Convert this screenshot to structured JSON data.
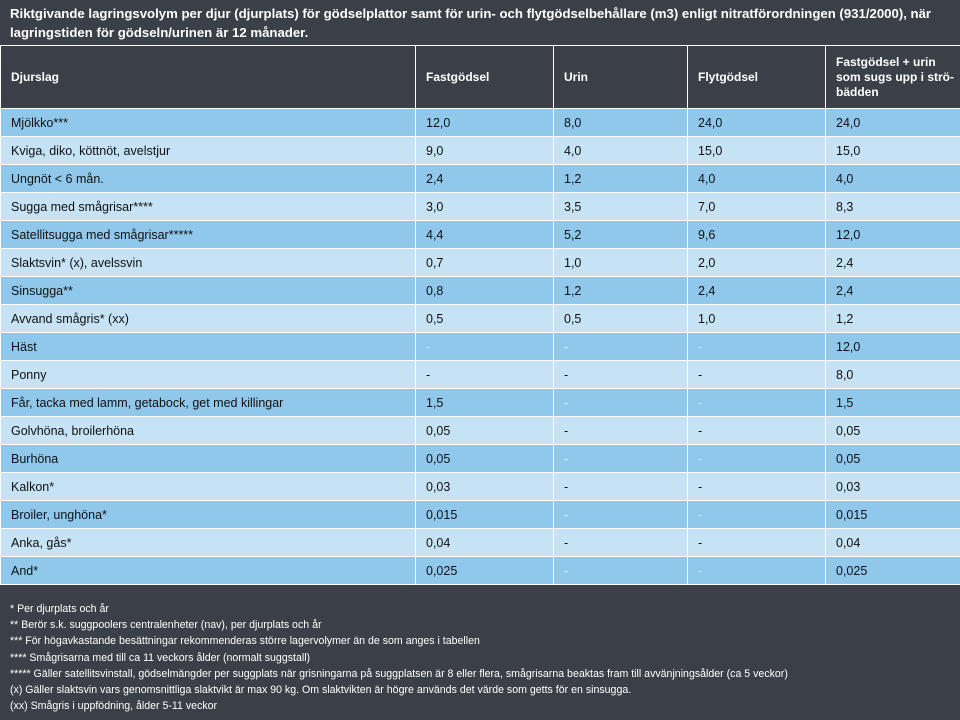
{
  "title": "Riktgivande lagringsvolym per djur (djurplats) för gödselplattor samt för urin- och flytgödselbehållare (m3) enligt nitratförordningen (931/2000),  när lagringstiden för gödseln/urinen är 12 månader.",
  "table": {
    "headers": [
      "Djurslag",
      "Fastgödsel",
      "Urin",
      "Flytgödsel",
      "Fastgödsel + urin som sugs upp i strö­bädden"
    ],
    "rows": [
      [
        "Mjölkko***",
        "12,0",
        "8,0",
        "24,0",
        "24,0"
      ],
      [
        "Kviga, diko, köttnöt, avelstjur",
        "9,0",
        "4,0",
        "15,0",
        "15,0"
      ],
      [
        "Ungnöt < 6 mån.",
        "2,4",
        "1,2",
        "4,0",
        "4,0"
      ],
      [
        "Sugga med smågrisar****",
        "3,0",
        "3,5",
        "7,0",
        "8,3"
      ],
      [
        "Satellitsugga med smågrisar*****",
        "4,4",
        "5,2",
        "9,6",
        "12,0"
      ],
      [
        "Slaktsvin* (x), avelssvin",
        "0,7",
        "1,0",
        "2,0",
        "2,4"
      ],
      [
        "Sinsugga**",
        "0,8",
        "1,2",
        "2,4",
        "2,4"
      ],
      [
        "Avvand smågris* (xx)",
        "0,5",
        "0,5",
        "1,0",
        "1,2"
      ],
      [
        "Häst",
        "-",
        "-",
        "-",
        "12,0"
      ],
      [
        "Ponny",
        "-",
        "-",
        "-",
        "8,0"
      ],
      [
        "Får, tacka med lamm, getabock, get med killingar",
        "1,5",
        "-",
        "-",
        "1,5"
      ],
      [
        "Golvhöna, broilerhöna",
        "0,05",
        "-",
        "-",
        "0,05"
      ],
      [
        "Burhöna",
        "0,05",
        "-",
        "-",
        "0,05"
      ],
      [
        "Kalkon*",
        "0,03",
        "-",
        "-",
        "0,03"
      ],
      [
        "Broiler, unghöna*",
        "0,015",
        "-",
        "-",
        "0,015"
      ],
      [
        "Anka, gås*",
        "0,04",
        "-",
        "-",
        "0,04"
      ],
      [
        "And*",
        "0,025",
        "-",
        "-",
        "0,025"
      ]
    ]
  },
  "notes": [
    "* Per djurplats och år",
    "** Berör s.k. suggpoolers centralenheter (nav), per djurplats och år",
    "*** För högavkastande besättningar rekommenderas större lagervolymer än de som anges i tabellen",
    "****  Smågrisarna med till ca 11 veckors ålder (normalt suggstall)",
    "*****  Gäller satellitsvinstall, gödselmängder per suggplats när grisningarna på suggplatsen är 8 eller flera, smågrisarna beaktas fram till avvänjningsålder (ca 5 veckor)",
    "(x) Gäller slaktsvin vars genomsnittliga slaktvikt är max 90 kg. Om slaktvikten är högre används det värde som getts för en sinsugga.",
    "(xx) Smågris i uppfödning, ålder 5-11 veckor"
  ],
  "colors": {
    "background": "#3b3f48",
    "row_dark": "#90c8ec",
    "row_light": "#c6e2f5"
  }
}
